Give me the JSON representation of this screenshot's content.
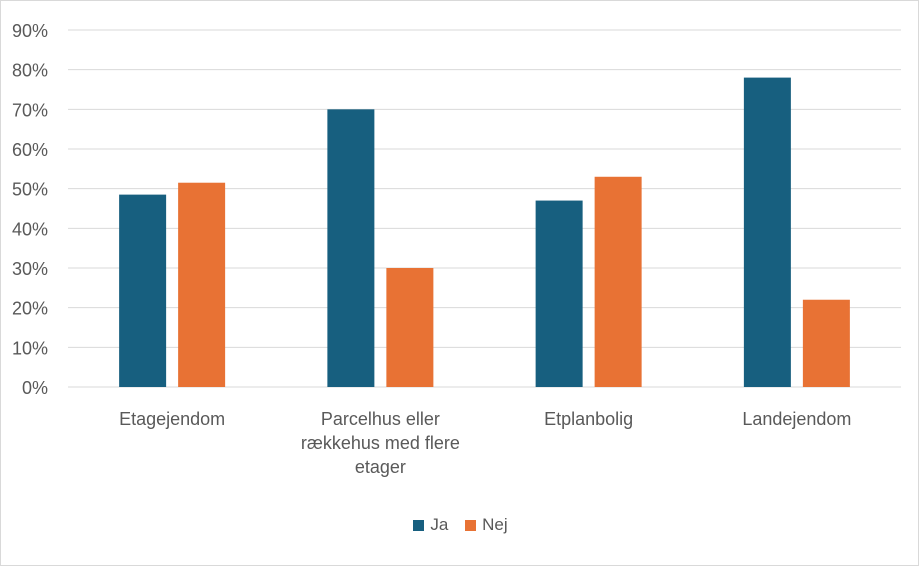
{
  "colors": {
    "ja": "#175f7f",
    "nej": "#e87234",
    "grid": "#d9d9d9",
    "text": "#595959"
  },
  "chart_data": {
    "type": "bar",
    "title": "",
    "xlabel": "",
    "ylabel": "",
    "ylim": [
      0,
      90
    ],
    "y_unit": "%",
    "y_ticks": [
      "0%",
      "10%",
      "20%",
      "30%",
      "40%",
      "50%",
      "60%",
      "70%",
      "80%",
      "90%"
    ],
    "categories": [
      [
        "Etagejendom"
      ],
      [
        "Parcelhus eller",
        "rækkehus med flere",
        "etager"
      ],
      [
        "Etplanbolig"
      ],
      [
        "Landejendom"
      ]
    ],
    "series": [
      {
        "name": "Ja",
        "values": [
          48.5,
          70,
          47,
          78
        ]
      },
      {
        "name": "Nej",
        "values": [
          51.5,
          30,
          53,
          22
        ]
      }
    ],
    "grid": true,
    "legend": "bottom"
  }
}
